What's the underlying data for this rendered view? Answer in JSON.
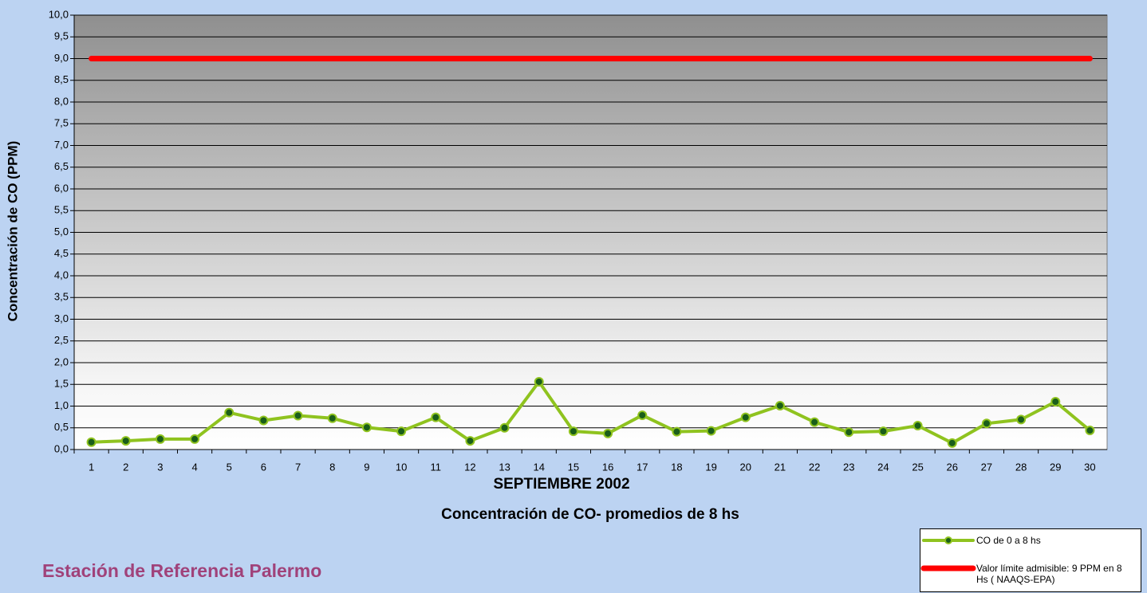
{
  "chart_data": {
    "type": "line",
    "xlabel": "SEPTIEMBRE 2002",
    "subtitle": "Concentración de CO- promedios de 8 hs",
    "ylabel": "Concentración de CO (PPM)",
    "footer": "Estación de Referencia Palermo",
    "categories": [
      "1",
      "2",
      "3",
      "4",
      "5",
      "6",
      "7",
      "8",
      "9",
      "10",
      "11",
      "12",
      "13",
      "14",
      "15",
      "16",
      "17",
      "18",
      "19",
      "20",
      "21",
      "22",
      "23",
      "24",
      "25",
      "26",
      "27",
      "28",
      "29",
      "30"
    ],
    "series": [
      {
        "name": "CO de 0 a 8 hs",
        "color": "#8fc31f",
        "markers": true,
        "values": [
          0.17,
          0.2,
          0.24,
          0.24,
          0.85,
          0.67,
          0.78,
          0.72,
          0.51,
          0.42,
          0.74,
          0.2,
          0.5,
          1.56,
          0.42,
          0.37,
          0.79,
          0.41,
          0.43,
          0.74,
          1.01,
          0.63,
          0.4,
          0.42,
          0.55,
          0.15,
          0.6,
          0.69,
          1.1,
          0.44
        ]
      },
      {
        "name": "Valor límite admisible: 9 PPM en 8 Hs ( NAAQS-EPA)",
        "color": "#ff0000",
        "markers": false,
        "values": [
          9,
          9,
          9,
          9,
          9,
          9,
          9,
          9,
          9,
          9,
          9,
          9,
          9,
          9,
          9,
          9,
          9,
          9,
          9,
          9,
          9,
          9,
          9,
          9,
          9,
          9,
          9,
          9,
          9,
          9
        ]
      }
    ],
    "ylim": [
      0,
      10
    ],
    "yticks": [
      {
        "value": 0,
        "label": "0,0"
      },
      {
        "value": 0.5,
        "label": "0,5"
      },
      {
        "value": 1,
        "label": "1,0"
      },
      {
        "value": 1.5,
        "label": "1,5"
      },
      {
        "value": 2,
        "label": "2,0"
      },
      {
        "value": 2.5,
        "label": "2,5"
      },
      {
        "value": 3,
        "label": "3,0"
      },
      {
        "value": 3.5,
        "label": "3,5"
      },
      {
        "value": 4,
        "label": "4,0"
      },
      {
        "value": 4.5,
        "label": "4,5"
      },
      {
        "value": 5,
        "label": "5,0"
      },
      {
        "value": 5.5,
        "label": "5,5"
      },
      {
        "value": 6,
        "label": "6,0"
      },
      {
        "value": 6.5,
        "label": "6,5"
      },
      {
        "value": 7,
        "label": "7,0"
      },
      {
        "value": 7.5,
        "label": "7,5"
      },
      {
        "value": 8,
        "label": "8,0"
      },
      {
        "value": 8.5,
        "label": "8,5"
      },
      {
        "value": 9,
        "label": "9,0"
      },
      {
        "value": 9.5,
        "label": "9,5"
      },
      {
        "value": 10,
        "label": "10,0"
      }
    ],
    "grid": true,
    "legend": "bottom-right"
  }
}
